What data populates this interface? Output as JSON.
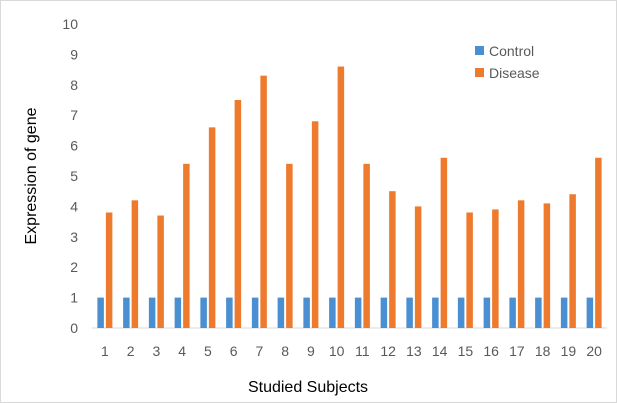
{
  "chart_data": {
    "type": "bar",
    "title": "",
    "xlabel": "Studied Subjects",
    "ylabel": "Expression of gene",
    "ylim": [
      0,
      10
    ],
    "yticks": [
      "0",
      "1",
      "2",
      "3",
      "4",
      "5",
      "6",
      "7",
      "8",
      "9",
      "10"
    ],
    "categories": [
      "1",
      "2",
      "3",
      "4",
      "5",
      "6",
      "7",
      "8",
      "9",
      "10",
      "11",
      "12",
      "13",
      "14",
      "15",
      "16",
      "17",
      "18",
      "19",
      "20"
    ],
    "series": [
      {
        "name": "Control",
        "color": "#4a8fd1",
        "values": [
          1,
          1,
          1,
          1,
          1,
          1,
          1,
          1,
          1,
          1,
          1,
          1,
          1,
          1,
          1,
          1,
          1,
          1,
          1,
          1
        ]
      },
      {
        "name": "Disease",
        "color": "#ee7a2e",
        "values": [
          3.8,
          4.2,
          3.7,
          5.4,
          6.6,
          7.5,
          8.3,
          5.4,
          6.8,
          8.6,
          5.4,
          4.5,
          4.0,
          5.6,
          3.8,
          3.9,
          4.2,
          4.1,
          4.4,
          5.6
        ]
      }
    ],
    "grid": false,
    "legend": "top-right"
  }
}
